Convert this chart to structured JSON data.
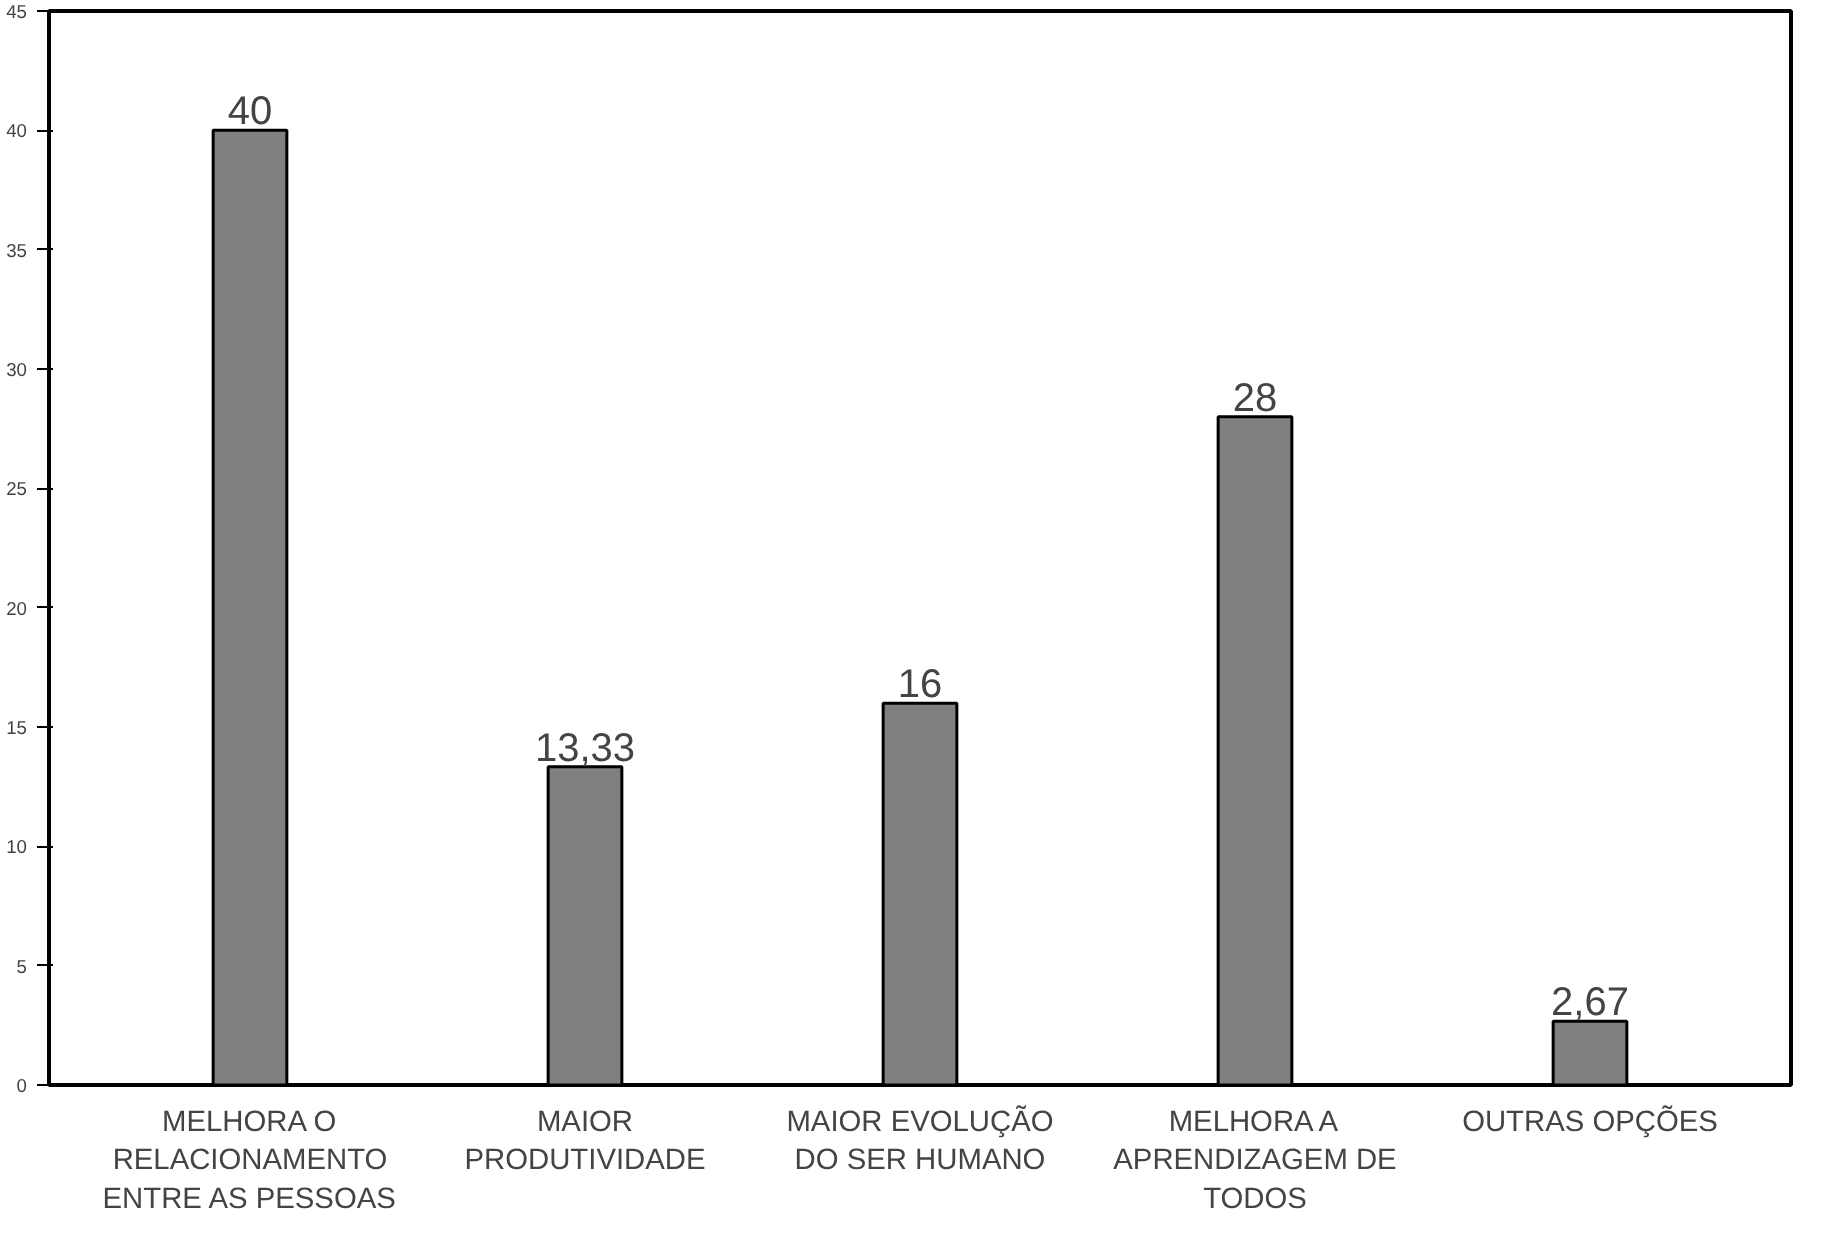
{
  "chart_data": {
    "type": "bar",
    "categories": [
      "MELHORA O RELACIONAMENTO ENTRE AS PESSOAS",
      "MAIOR PRODUTIVIDADE",
      "MAIOR EVOLUÇÃO DO SER HUMANO",
      "MELHORA A APRENDIZAGEM DE TODOS",
      "OUTRAS OPÇÕES"
    ],
    "values": [
      40,
      13.33,
      16,
      28,
      2.67
    ],
    "value_labels": [
      "40",
      "13,33",
      "16",
      "28",
      "2,67"
    ],
    "color": "#808080",
    "ylim": [
      0,
      45
    ],
    "yticks": [
      0,
      5,
      10,
      15,
      20,
      25,
      30,
      35,
      40,
      45
    ],
    "grid": false
  }
}
